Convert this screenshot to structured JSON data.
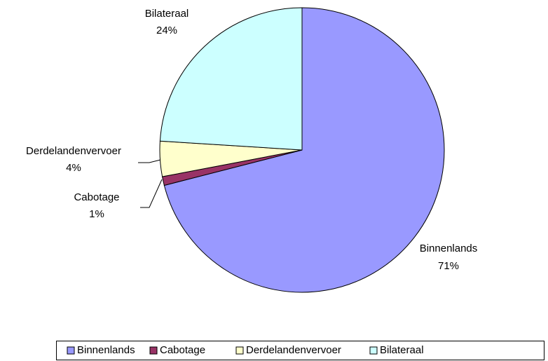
{
  "chart_data": {
    "type": "pie",
    "categories": [
      "Binnenlands",
      "Cabotage",
      "Derdelandenvervoer",
      "Bilateraal"
    ],
    "values": [
      71,
      1,
      4,
      24
    ],
    "value_labels": [
      "71%",
      "1%",
      "4%",
      "24%"
    ],
    "colors": [
      "#9999ff",
      "#993366",
      "#ffffcc",
      "#ccffff"
    ],
    "legend": "bottom"
  }
}
